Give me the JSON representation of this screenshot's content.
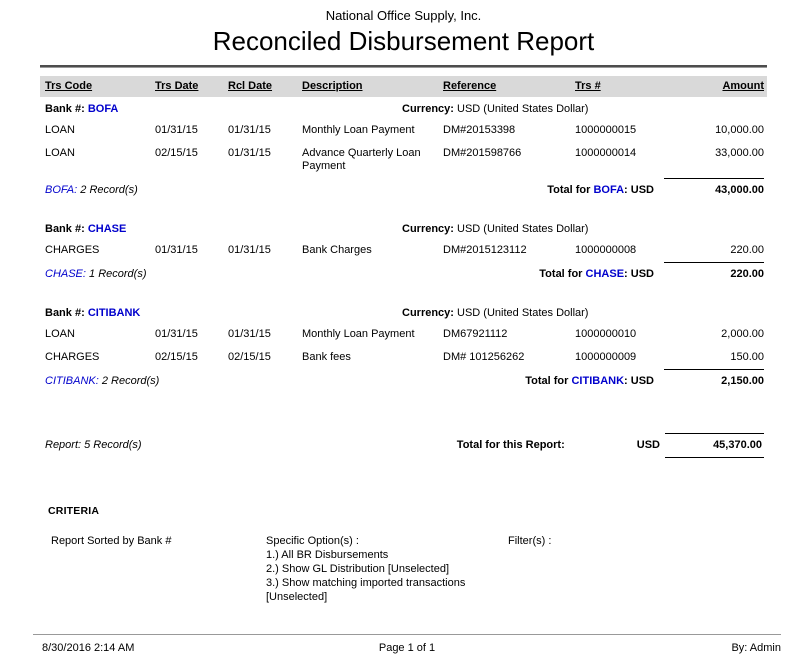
{
  "header": {
    "company": "National Office Supply, Inc.",
    "title": "Reconciled Disbursement Report"
  },
  "table": {
    "columns": [
      "Trs Code",
      "Trs Date",
      "Rcl Date",
      "Description",
      "Reference",
      "Trs #",
      "Amount"
    ],
    "labels": {
      "bank": "Bank #:",
      "currency": "Currency:",
      "total_for": "Total for",
      "usd_suffix": ": USD"
    },
    "groups": [
      {
        "bank": "BOFA",
        "currency": "USD (United States Dollar)",
        "rows": [
          {
            "code": "LOAN",
            "trs_date": "01/31/15",
            "rcl_date": "01/31/15",
            "description": "Monthly Loan Payment",
            "reference": "DM#20153398",
            "trs_no": "1000000015",
            "amount": "10,000.00"
          },
          {
            "code": "LOAN",
            "trs_date": "02/15/15",
            "rcl_date": "01/31/15",
            "description": "Advance Quarterly Loan Payment",
            "reference": "DM#201598766",
            "trs_no": "1000000014",
            "amount": "33,000.00"
          }
        ],
        "records_bank": "BOFA:",
        "records_count": "2 Record(s)",
        "total": "43,000.00"
      },
      {
        "bank": "CHASE",
        "currency": "USD (United States Dollar)",
        "rows": [
          {
            "code": "CHARGES",
            "trs_date": "01/31/15",
            "rcl_date": "01/31/15",
            "description": "Bank Charges",
            "reference": "DM#2015123112",
            "trs_no": "1000000008",
            "amount": "220.00"
          }
        ],
        "records_bank": "CHASE:",
        "records_count": "1 Record(s)",
        "total": "220.00"
      },
      {
        "bank": "CITIBANK",
        "currency": "USD (United States Dollar)",
        "rows": [
          {
            "code": "LOAN",
            "trs_date": "01/31/15",
            "rcl_date": "01/31/15",
            "description": "Monthly Loan Payment",
            "reference": "DM67921112",
            "trs_no": "1000000010",
            "amount": "2,000.00"
          },
          {
            "code": "CHARGES",
            "trs_date": "02/15/15",
            "rcl_date": "02/15/15",
            "description": "Bank fees",
            "reference": "DM# 101256262",
            "trs_no": "1000000009",
            "amount": "150.00"
          }
        ],
        "records_bank": "CITIBANK:",
        "records_count": "2 Record(s)",
        "total": "2,150.00"
      }
    ]
  },
  "report_total": {
    "records": "Report: 5 Record(s)",
    "label": "Total for this Report:",
    "currency": "USD",
    "amount": "45,370.00"
  },
  "criteria": {
    "heading": "CRITERIA",
    "sorted_by": "Report Sorted by Bank #",
    "options_label": "Specific Option(s) :",
    "options": [
      "1.) All BR Disbursements",
      "2.) Show GL Distribution [Unselected]",
      "3.) Show matching imported transactions [Unselected]"
    ],
    "filters_label": "Filter(s) :"
  },
  "footer": {
    "date": "8/30/2016 2:14 AM",
    "page": "Page 1 of 1",
    "by": "By: Admin"
  }
}
